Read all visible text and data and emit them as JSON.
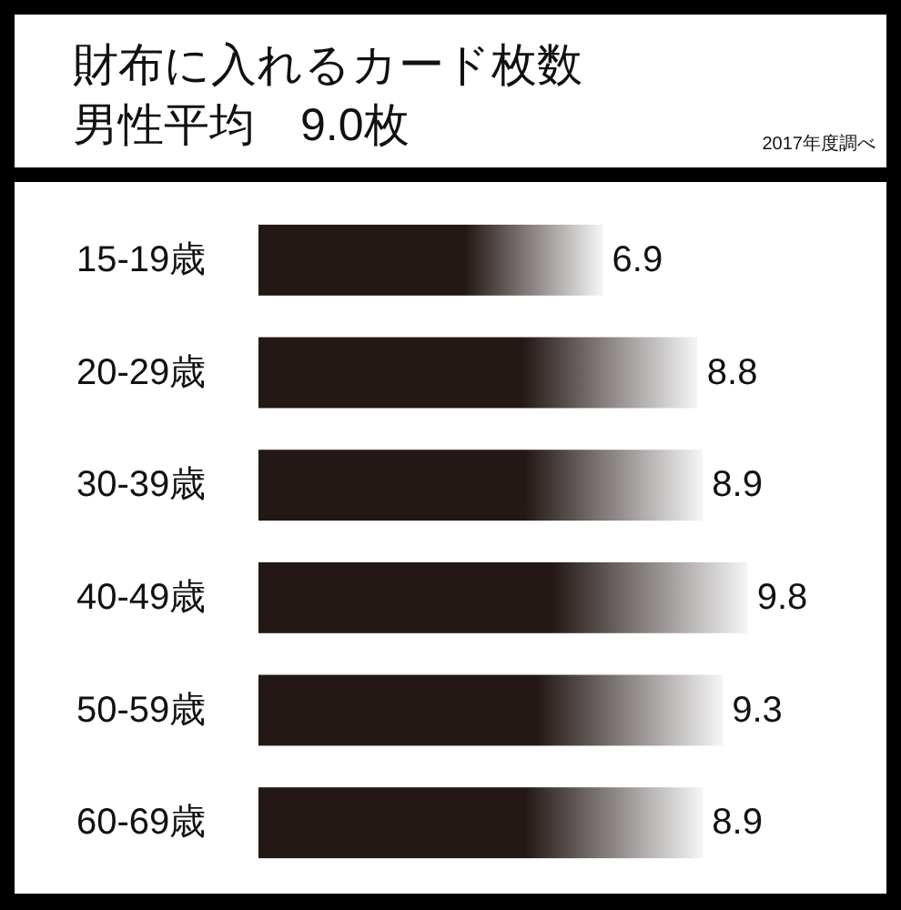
{
  "chart_data": {
    "type": "bar",
    "orientation": "horizontal",
    "title": "財布に入れるカード枚数",
    "subtitle": "男性平均　9.0枚",
    "annotations": [
      "2017年度調べ"
    ],
    "categories": [
      "15-19歳",
      "20-29歳",
      "30-39歳",
      "40-49歳",
      "50-59歳",
      "60-69歳"
    ],
    "values": [
      6.9,
      8.8,
      8.9,
      9.8,
      9.3,
      8.9
    ],
    "color": "#231815",
    "data_labels": true
  }
}
